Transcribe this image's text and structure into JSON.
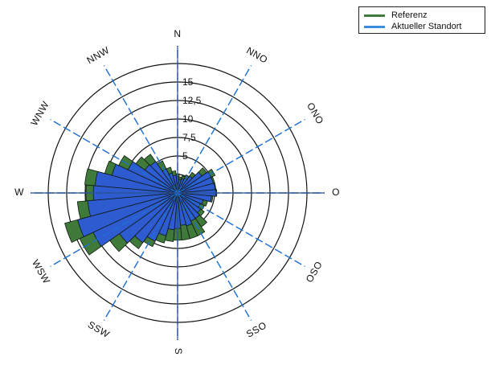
{
  "chart_data": {
    "type": "wind-rose",
    "title": "",
    "radial_ticks": [
      "5",
      "7,5",
      "10",
      "12,5",
      "15"
    ],
    "radial_tick_values": [
      5,
      7.5,
      10,
      12.5,
      15
    ],
    "rings": [
      2.5,
      5,
      7.5,
      10,
      12.5,
      15,
      17.5
    ],
    "rmax": 17.5,
    "directions": [
      {
        "label": "N",
        "angle": 0
      },
      {
        "label": "NNO",
        "angle": 30
      },
      {
        "label": "ONO",
        "angle": 60
      },
      {
        "label": "O",
        "angle": 90
      },
      {
        "label": "OSO",
        "angle": 120
      },
      {
        "label": "SSO",
        "angle": 150
      },
      {
        "label": "S",
        "angle": 180
      },
      {
        "label": "SSW",
        "angle": 210
      },
      {
        "label": "WSW",
        "angle": 240
      },
      {
        "label": "W",
        "angle": 270
      },
      {
        "label": "WNW",
        "angle": 300
      },
      {
        "label": "NNW",
        "angle": 330
      }
    ],
    "sector_width_deg": 10,
    "sector_centers_deg": [
      0,
      10,
      20,
      30,
      40,
      50,
      60,
      70,
      80,
      90,
      100,
      110,
      120,
      130,
      140,
      150,
      160,
      170,
      180,
      190,
      200,
      210,
      220,
      230,
      240,
      250,
      260,
      270,
      280,
      290,
      300,
      310,
      320,
      330,
      340,
      350
    ],
    "legend_position": "top-right",
    "series": [
      {
        "name": "Referenz",
        "color": "#3f7a3a",
        "values": [
          2.6,
          2.2,
          2.4,
          2.7,
          3.4,
          4.8,
          5.6,
          5.2,
          5.2,
          5.3,
          4.8,
          4.2,
          4.0,
          4.4,
          5.6,
          6.4,
          6.4,
          6.4,
          6.4,
          6.6,
          7.0,
          8.0,
          9.2,
          11.2,
          14.6,
          15.8,
          13.6,
          12.4,
          12.6,
          10.2,
          8.8,
          6.9,
          6.4,
          4.8,
          3.6,
          3.0
        ]
      },
      {
        "name": "Aktueller Standort",
        "color": "#2f5bd1",
        "values": [
          2.2,
          1.8,
          2.0,
          2.2,
          2.8,
          4.0,
          5.0,
          5.0,
          5.1,
          5.2,
          4.6,
          3.6,
          3.4,
          3.8,
          4.2,
          4.2,
          4.6,
          4.4,
          4.8,
          5.0,
          6.0,
          7.2,
          8.2,
          9.6,
          12.6,
          14.0,
          12.2,
          11.4,
          11.2,
          9.2,
          7.4,
          5.4,
          5.2,
          3.6,
          2.8,
          2.4
        ]
      }
    ]
  }
}
